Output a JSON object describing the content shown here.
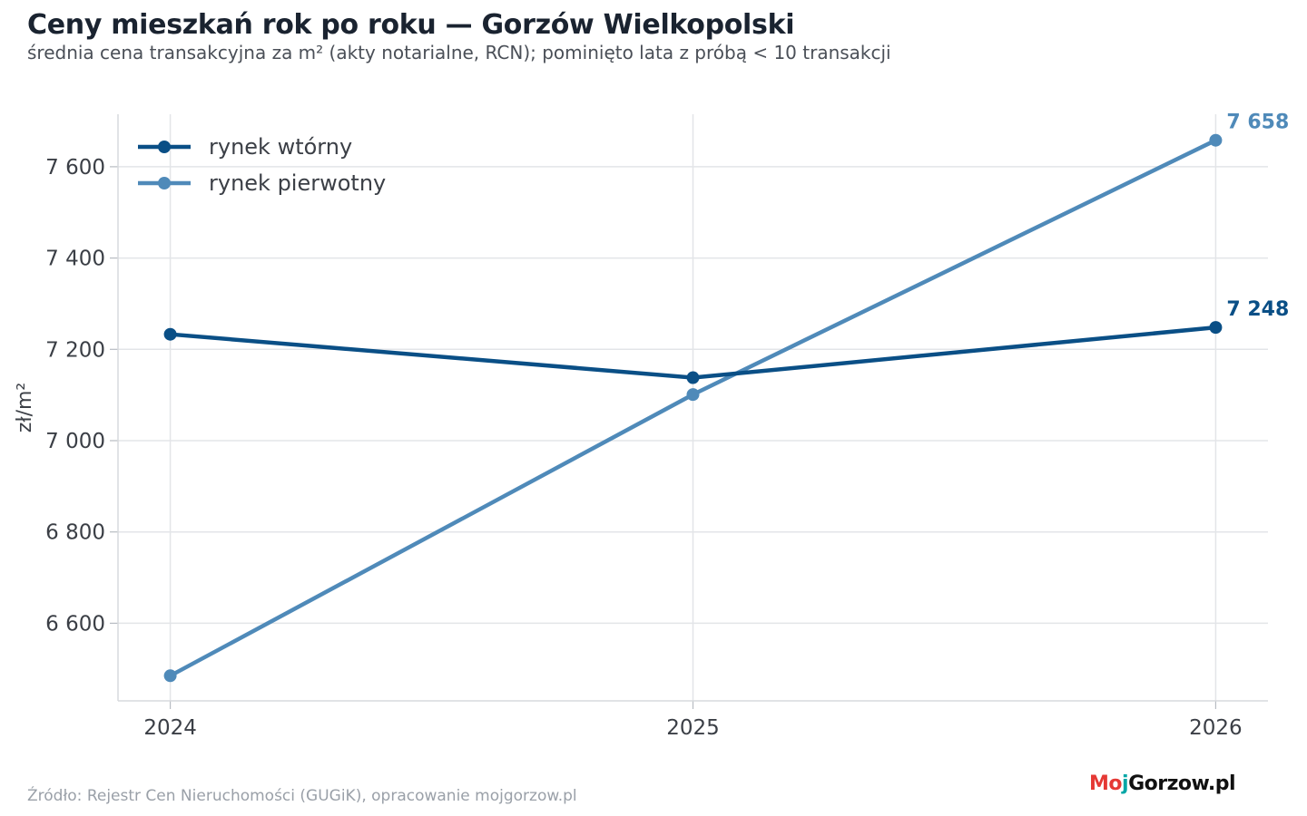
{
  "header": {
    "title": "Ceny mieszkań rok po roku — Gorzów Wielkopolski",
    "subtitle": "średnia cena transakcyjna za m² (akty notarialne, RCN); pominięto lata z próbą < 10 transakcji"
  },
  "footer": {
    "source": "Źródło: Rejestr Cen Nieruchomości (GUGiK), opracowanie mojgorzow.pl",
    "logo": "MojGorzow.pl"
  },
  "chart_data": {
    "type": "line",
    "x": [
      2024,
      2025,
      2026
    ],
    "xticks": [
      "2024",
      "2025",
      "2026"
    ],
    "xlim": [
      2023.9,
      2026.1
    ],
    "ylabel": "zł/m²",
    "ylim": [
      6430,
      7715
    ],
    "yticks": [
      6600,
      6800,
      7000,
      7200,
      7400,
      7600
    ],
    "ytick_labels": [
      "6 600",
      "6 800",
      "7 000",
      "7 200",
      "7 400",
      "7 600"
    ],
    "grid": true,
    "legend_position": "top-left",
    "series": [
      {
        "name": "rynek wtórny",
        "values": [
          7233,
          7138,
          7248
        ],
        "color": "#0a4f86",
        "end_label": "7 248"
      },
      {
        "name": "rynek pierwotny",
        "values": [
          6485,
          7101,
          7658
        ],
        "color": "#4f8ab9",
        "end_label": "7 658"
      }
    ]
  }
}
